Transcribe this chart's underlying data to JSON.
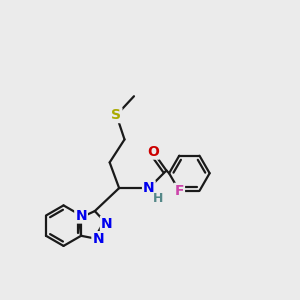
{
  "bg_color": "#ebebeb",
  "bond_color": "#1a1a1a",
  "N_color": "#0000ee",
  "O_color": "#cc0000",
  "F_color": "#cc44aa",
  "S_color": "#aaaa00",
  "H_color": "#558888",
  "font_size": 10,
  "bond_width": 1.6,
  "xlim": [
    -0.5,
    10.5
  ],
  "ylim": [
    -0.5,
    10.5
  ]
}
